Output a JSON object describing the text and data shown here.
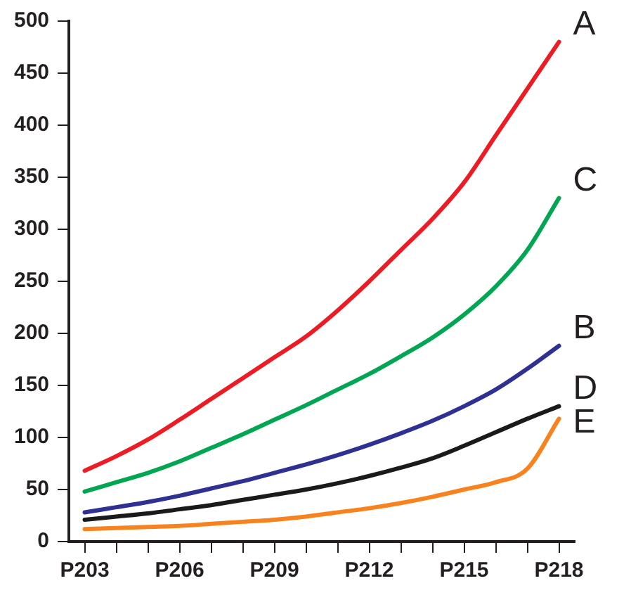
{
  "chart_data": {
    "type": "line",
    "categories": [
      "P203",
      null,
      null,
      "P206",
      null,
      null,
      "P209",
      null,
      null,
      "P212",
      null,
      null,
      "P215",
      null,
      null,
      "P218"
    ],
    "ylim": [
      0,
      500
    ],
    "yticks": [
      0,
      50,
      100,
      150,
      200,
      250,
      300,
      350,
      400,
      450,
      500
    ],
    "grid": false,
    "legend": false,
    "marker": "none",
    "line_style": "solid",
    "series": [
      {
        "name": "A",
        "color": "#ed1c24",
        "values": [
          68,
          82,
          98,
          117,
          137,
          157,
          177,
          197,
          222,
          250,
          280,
          310,
          345,
          390,
          435,
          480
        ]
      },
      {
        "name": "C",
        "color": "#00a651",
        "values": [
          48,
          57,
          66,
          77,
          90,
          103,
          117,
          131,
          146,
          161,
          178,
          196,
          218,
          245,
          280,
          330
        ]
      },
      {
        "name": "B",
        "color": "#2e3192",
        "values": [
          28,
          33,
          38,
          44,
          51,
          58,
          66,
          74,
          83,
          93,
          104,
          116,
          130,
          146,
          166,
          188
        ]
      },
      {
        "name": "D",
        "color": "#1a1a1a",
        "values": [
          21,
          24,
          27,
          31,
          35,
          40,
          45,
          50,
          56,
          63,
          71,
          80,
          92,
          105,
          118,
          130
        ]
      },
      {
        "name": "E",
        "color": "#f7821e",
        "values": [
          12,
          13,
          14,
          15,
          17,
          19,
          21,
          24,
          28,
          32,
          37,
          43,
          50,
          57,
          70,
          118
        ]
      }
    ]
  }
}
